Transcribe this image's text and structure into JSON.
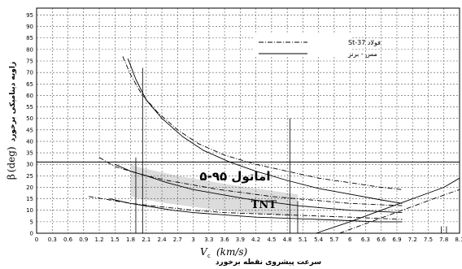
{
  "chart_data": {
    "type": "line",
    "x_axis": {
      "symbol": "V",
      "symbol_sub": "c",
      "unit": "(km/s)",
      "label_fa": "سرعت پیشروی نقطه برخورد",
      "ticks": [
        "0",
        "0.3",
        "0.6",
        "0.9",
        "1.2",
        "1.5",
        "1.8",
        "2.1",
        "2.4",
        "2.7",
        "3",
        "3.3",
        "3.6",
        "3.9",
        "4.2",
        "4.5",
        "4.8",
        "5.1",
        "5.4",
        "5.7",
        "6",
        "6.3",
        "6.6",
        "6.9",
        "7.2",
        "7.5",
        "7.8",
        "8.1"
      ],
      "range": [
        0,
        8.1
      ]
    },
    "y_axis": {
      "symbol": "β",
      "unit": "(deg)",
      "label_fa": "زاویه دینامیکی برخورد",
      "ticks": [
        "0",
        "5",
        "10",
        "15",
        "20",
        "25",
        "30",
        "35",
        "40",
        "45",
        "50",
        "55",
        "60",
        "65",
        "70",
        "75",
        "80",
        "85",
        "90",
        "95"
      ],
      "range": [
        0,
        98
      ]
    },
    "grid": true,
    "legend": {
      "placement": "top-right",
      "entries": [
        {
          "label": "فولاد St-37",
          "style": "dash-dot"
        },
        {
          "label": "مس - برنز",
          "style": "solid"
        }
      ]
    },
    "annotations": [
      {
        "text": "اماتول ۹۵-۵",
        "x": 3.8,
        "y": 23
      },
      {
        "text": "TNT",
        "x": 4.35,
        "y": 11
      }
    ],
    "series": [
      {
        "style": "solid",
        "x": [
          1.75,
          1.9,
          2.1,
          2.4,
          2.8,
          3.2,
          3.7,
          4.2,
          4.8,
          5.4,
          6,
          6.6,
          7.0
        ],
        "y": [
          76,
          67,
          58,
          50,
          42,
          36,
          31,
          27,
          23,
          19.5,
          17,
          14.5,
          13
        ]
      },
      {
        "style": "dash-dot",
        "x": [
          1.65,
          1.8,
          2.0,
          2.3,
          2.7,
          3.1,
          3.6,
          4.2,
          4.8,
          5.4,
          6,
          6.6,
          7.0
        ],
        "y": [
          77,
          69,
          61,
          53,
          45,
          39,
          34,
          30,
          27,
          24,
          22,
          20,
          19
        ]
      },
      {
        "style": "solid",
        "x": [
          1.5,
          1.8,
          2.1,
          2.5,
          3.0,
          3.5,
          4.0,
          4.5,
          5.0,
          5.5,
          6.0,
          6.5,
          7.0
        ],
        "y": [
          30,
          27,
          25,
          22,
          19,
          17,
          15,
          13.5,
          12,
          11,
          10,
          9.5,
          9
        ]
      },
      {
        "style": "dash-dot",
        "x": [
          1.2,
          1.5,
          1.8,
          2.1,
          2.5,
          3.0,
          3.5,
          4.0,
          4.5,
          5.0,
          5.5,
          6.0,
          6.5,
          7.0
        ],
        "y": [
          33,
          29,
          27,
          25,
          23,
          21,
          19,
          17.5,
          16,
          15,
          14,
          13,
          12.5,
          12
        ]
      },
      {
        "style": "solid",
        "x": [
          1.4,
          1.8,
          2.2,
          2.6,
          3.0,
          3.6,
          4.2,
          4.8,
          5.4,
          6.0,
          6.5,
          7.0
        ],
        "y": [
          15,
          13,
          11.5,
          10,
          9,
          8,
          7,
          6.5,
          6,
          5.5,
          5,
          5
        ]
      },
      {
        "style": "dash-dot",
        "x": [
          1.0,
          1.4,
          1.8,
          2.2,
          2.6,
          3.0,
          3.6,
          4.2,
          4.8,
          5.4,
          6.0,
          6.5,
          7.0
        ],
        "y": [
          16,
          14.5,
          13,
          12,
          11,
          10,
          9,
          8.5,
          8,
          7.5,
          7,
          6.5,
          6
        ]
      },
      {
        "style": "solid",
        "x": [
          5.35,
          6.0,
          6.6,
          7.2,
          7.8,
          8.1
        ],
        "y": [
          0,
          5,
          10,
          15,
          20,
          24
        ]
      },
      {
        "style": "dash-dot",
        "x": [
          5.8,
          6.4,
          7.0,
          7.6,
          8.1
        ],
        "y": [
          0,
          5,
          10,
          15,
          19
        ]
      }
    ],
    "shaded_region": {
      "upper": {
        "x": [
          1.8,
          2.0,
          2.3,
          2.7,
          3.1,
          3.6,
          4.2,
          4.8,
          5.0
        ],
        "y": [
          30,
          28.5,
          27,
          25,
          23.5,
          21.5,
          19.5,
          17.5,
          17
        ]
      },
      "lower": {
        "x": [
          5.0,
          4.5,
          4.0,
          3.5,
          3.0,
          2.5,
          2.0,
          1.8
        ],
        "y": [
          7,
          8,
          9,
          10,
          11.5,
          13,
          15,
          16
        ]
      }
    },
    "reference_lines": [
      {
        "orientation": "horizontal",
        "y": 31
      },
      {
        "orientation": "vertical",
        "x": 1.9,
        "y_top": 33
      },
      {
        "orientation": "vertical",
        "x": 2.03,
        "y_top": 72
      },
      {
        "orientation": "vertical",
        "x": 4.85,
        "y_top": 50
      },
      {
        "orientation": "vertical",
        "x": 5.0,
        "y_top": 14
      },
      {
        "orientation": "vertical",
        "x": 7.75,
        "y_top": 3
      },
      {
        "orientation": "vertical",
        "x": 7.85,
        "y_top": 3
      }
    ]
  }
}
